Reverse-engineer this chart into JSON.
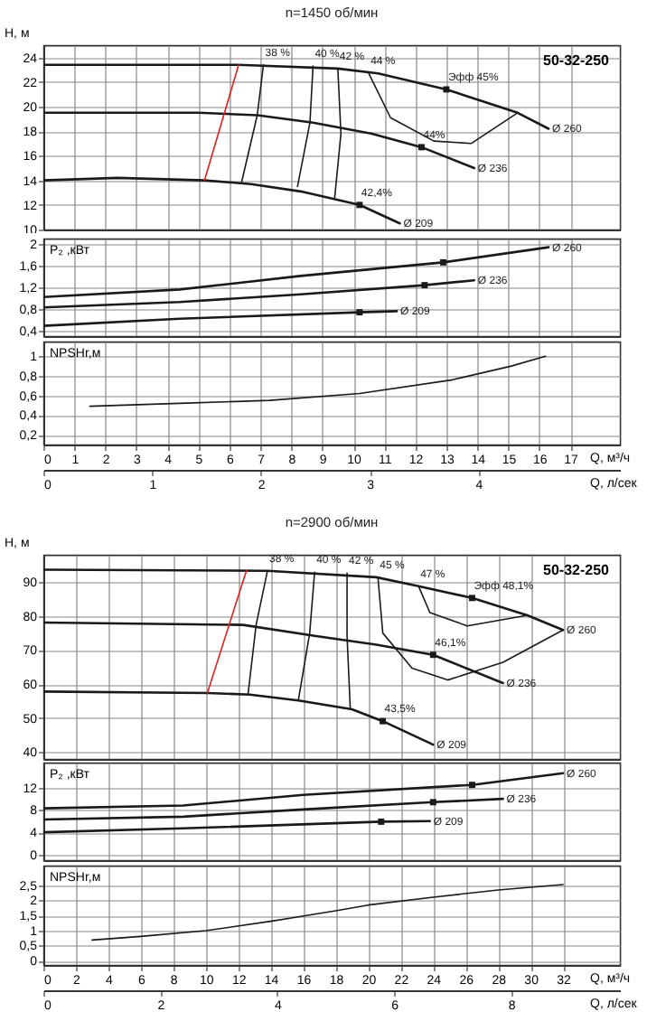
{
  "chart_data": [
    {
      "type": "line",
      "title": "n=1450 об/мин",
      "ylabel": "H, м",
      "xlim": [
        0,
        18.6
      ],
      "xticks": [
        0,
        1,
        2,
        3,
        4,
        5,
        6,
        7,
        8,
        9,
        10,
        11,
        12,
        13,
        14,
        15,
        16,
        17
      ],
      "ylim": [
        10,
        25
      ],
      "yticks": [
        10,
        12,
        14,
        16,
        18,
        20,
        22,
        24
      ],
      "grid": true,
      "tick_labels": "y",
      "series": [
        {
          "name": "Ø 260",
          "color": "#1a1a1a",
          "x": [
            0,
            6.3,
            9.5,
            10.8,
            13.0,
            15.3,
            16.3
          ],
          "values": [
            23.4,
            23.4,
            23.1,
            22.7,
            21.4,
            19.5,
            18.2
          ]
        },
        {
          "name": "Ø 236",
          "color": "#1a1a1a",
          "x": [
            0,
            5.0,
            6.9,
            8.7,
            10.6,
            12.2,
            13.9
          ],
          "values": [
            19.5,
            19.5,
            19.3,
            18.7,
            17.8,
            16.7,
            15.0
          ]
        },
        {
          "name": "Ø 209",
          "color": "#1a1a1a",
          "x": [
            0,
            2.4,
            5.2,
            6.7,
            8.3,
            10.2,
            11.5
          ],
          "values": [
            14.0,
            14.2,
            14.0,
            13.7,
            13.1,
            12.0,
            10.5
          ]
        },
        {
          "color": "#e0201c",
          "x": [
            6.3,
            5.2
          ],
          "values": [
            23.4,
            14.0
          ]
        },
        {
          "color": "#1a1a1a",
          "x": [
            7.1,
            6.9,
            6.4
          ],
          "values": [
            23.4,
            19.3,
            13.9
          ]
        },
        {
          "color": "#1a1a1a",
          "x": [
            8.7,
            8.6,
            8.2
          ],
          "values": [
            23.3,
            18.7,
            13.5
          ]
        },
        {
          "color": "#1a1a1a",
          "x": [
            9.5,
            9.6,
            9.4
          ],
          "values": [
            23.1,
            17.8,
            12.6
          ]
        },
        {
          "color": "#1a1a1a",
          "x": [
            10.5,
            11.2,
            12.6,
            13.8,
            15.3
          ],
          "values": [
            22.7,
            19.1,
            17.2,
            17.0,
            19.5
          ]
        },
        {
          "type": "scatter",
          "marker": "square",
          "color": "#1a1a1a",
          "x": [
            13.0,
            12.2,
            10.2
          ],
          "values": [
            21.4,
            16.7,
            12.0
          ]
        }
      ],
      "annotations": [
        "50-32-250",
        {
          "text": "38 %",
          "x": 7.1,
          "y": 23.4
        },
        {
          "text": "40 %",
          "x": 8.7,
          "y": 23.3
        },
        {
          "text": "42 %",
          "x": 9.5,
          "y": 23.1
        },
        {
          "text": "44 %",
          "x": 10.5,
          "y": 22.7
        },
        {
          "text": "Эфф  45%",
          "x": 13.0,
          "y": 21.4
        },
        {
          "text": "44%",
          "x": 12.2,
          "y": 16.7
        },
        {
          "text": "42,4%",
          "x": 10.2,
          "y": 12.0
        }
      ]
    },
    {
      "type": "line",
      "ylabel": "P₂ ,кВт",
      "xlim": [
        0,
        18.6
      ],
      "xticks": [
        0,
        1,
        2,
        3,
        4,
        5,
        6,
        7,
        8,
        9,
        10,
        11,
        12,
        13,
        14,
        15,
        16,
        17
      ],
      "ylim": [
        0.3,
        2.1
      ],
      "yticks": [
        {
          "value": 0.4,
          "label": "0,4"
        },
        {
          "value": 0.8,
          "label": "0,8"
        },
        {
          "value": 1.2,
          "label": "1,2"
        },
        {
          "value": 1.6,
          "label": "1,6"
        },
        2
      ],
      "grid": true,
      "tick_labels": "y",
      "series": [
        {
          "name": "Ø 260",
          "color": "#1a1a1a",
          "x": [
            0,
            4.4,
            8.3,
            12.9,
            16.3
          ],
          "values": [
            1.02,
            1.16,
            1.41,
            1.66,
            1.94
          ]
        },
        {
          "name": "Ø 236",
          "color": "#1a1a1a",
          "x": [
            0,
            4.4,
            8.3,
            12.3,
            13.9
          ],
          "values": [
            0.83,
            0.93,
            1.07,
            1.24,
            1.33
          ]
        },
        {
          "name": "Ø 209",
          "color": "#1a1a1a",
          "x": [
            0,
            4.4,
            10.2,
            11.4
          ],
          "values": [
            0.49,
            0.62,
            0.74,
            0.76
          ]
        },
        {
          "type": "scatter",
          "marker": "square",
          "color": "#1a1a1a",
          "x": [
            12.9,
            12.3,
            10.2
          ],
          "values": [
            1.66,
            1.24,
            0.74
          ]
        }
      ]
    },
    {
      "type": "line",
      "ylabel": "NPSHr,м",
      "xlabel": "Q, м³/ч",
      "x2label": "Q, л/сек",
      "xlim": [
        0,
        18.6
      ],
      "xticks": [
        0,
        1,
        2,
        3,
        4,
        5,
        6,
        7,
        8,
        9,
        10,
        11,
        12,
        13,
        14,
        15,
        16,
        17
      ],
      "x2lim": [
        0,
        5.3
      ],
      "x2ticks": [
        0,
        1,
        2,
        3,
        4
      ],
      "ylim": [
        0.1,
        1.15
      ],
      "yticks": [
        {
          "value": 0.2,
          "label": "0,2"
        },
        {
          "value": 0.4,
          "label": "0,4"
        },
        {
          "value": 0.6,
          "label": "0,6"
        },
        {
          "value": 0.8,
          "label": "0,8"
        },
        1
      ],
      "grid": true,
      "series": [
        {
          "color": "#1a1a1a",
          "x": [
            1.5,
            4.4,
            7.3,
            10.2,
            13.2,
            15.1,
            16.2
          ],
          "values": [
            0.49,
            0.52,
            0.55,
            0.62,
            0.76,
            0.9,
            1.0
          ]
        }
      ]
    },
    {
      "type": "line",
      "title": "n=2900 об/мин",
      "ylabel": "H, м",
      "xlim": [
        0,
        35.5
      ],
      "xticks": [
        0,
        2,
        4,
        6,
        8,
        10,
        12,
        14,
        16,
        18,
        20,
        22,
        24,
        26,
        28,
        30,
        32
      ],
      "ylim": [
        38,
        98
      ],
      "yticks": [
        40,
        50,
        60,
        70,
        80,
        90
      ],
      "grid": true,
      "tick_labels": "y",
      "series": [
        {
          "name": "Ø 260",
          "color": "#1a1a1a",
          "x": [
            0,
            13.8,
            20.5,
            23.1,
            26.4,
            29.8,
            32.0
          ],
          "values": [
            93.6,
            93.3,
            91.4,
            88.8,
            85.3,
            80.2,
            75.9
          ]
        },
        {
          "name": "Ø 236",
          "color": "#1a1a1a",
          "x": [
            0,
            12.3,
            16.8,
            20.5,
            24.0,
            28.3
          ],
          "values": [
            78.1,
            77.4,
            74.1,
            71.6,
            68.6,
            60.3
          ]
        },
        {
          "name": "Ø 209",
          "color": "#1a1a1a",
          "x": [
            0,
            10.1,
            12.7,
            15.7,
            19.0,
            20.9,
            24.0
          ],
          "values": [
            57.8,
            57.4,
            56.9,
            55.2,
            52.6,
            49.1,
            42.2
          ]
        },
        {
          "color": "#e0201c",
          "x": [
            12.5,
            10.1
          ],
          "values": [
            93.3,
            57.4
          ]
        },
        {
          "color": "#1a1a1a",
          "x": [
            13.8,
            13.1,
            12.6
          ],
          "values": [
            93.3,
            77.4,
            56.9
          ]
        },
        {
          "color": "#1a1a1a",
          "x": [
            16.7,
            16.4,
            15.7
          ],
          "values": [
            92.9,
            75,
            55.2
          ]
        },
        {
          "color": "#1a1a1a",
          "x": [
            18.7,
            18.7,
            18.9
          ],
          "values": [
            92.6,
            74.1,
            52.6
          ]
        },
        {
          "color": "#1a1a1a",
          "x": [
            20.6,
            20.9,
            22.7,
            24.9,
            28.3,
            32.0
          ],
          "values": [
            91.4,
            75,
            64.7,
            61.2,
            66.4,
            75.9
          ]
        },
        {
          "color": "#1a1a1a",
          "x": [
            23.1,
            23.8,
            26.1,
            29.8
          ],
          "values": [
            88.8,
            81.0,
            77.1,
            80.2
          ]
        },
        {
          "type": "scatter",
          "marker": "square",
          "color": "#1a1a1a",
          "x": [
            26.4,
            24.0,
            20.9
          ],
          "values": [
            85.3,
            68.6,
            49.1
          ]
        }
      ],
      "annotations": [
        "50-32-250",
        {
          "text": "38 %",
          "x": 13.8,
          "y": 93.3
        },
        {
          "text": "40 %",
          "x": 16.7,
          "y": 92.9
        },
        {
          "text": "42 %",
          "x": 18.7,
          "y": 92.6
        },
        {
          "text": "45 %",
          "x": 20.6,
          "y": 91.4
        },
        {
          "text": "47 %",
          "x": 23.1,
          "y": 88.8
        },
        {
          "text": "Эфф  48,1%",
          "x": 26.4,
          "y": 85.3
        },
        {
          "text": "46,1%",
          "x": 24.0,
          "y": 68.6
        },
        {
          "text": "43,5%",
          "x": 20.9,
          "y": 49.1
        }
      ]
    },
    {
      "type": "line",
      "ylabel": "P₂ ,кВт",
      "xlim": [
        0,
        35.5
      ],
      "xticks": [
        0,
        2,
        4,
        6,
        8,
        10,
        12,
        14,
        16,
        18,
        20,
        22,
        24,
        26,
        28,
        30,
        32
      ],
      "ylim": [
        -1,
        16.5
      ],
      "yticks": [
        0,
        4,
        8,
        12
      ],
      "grid": true,
      "tick_labels": "y",
      "series": [
        {
          "name": "Ø 260",
          "color": "#1a1a1a",
          "x": [
            0,
            8.6,
            16,
            26.4,
            32
          ],
          "values": [
            8.3,
            8.8,
            10.7,
            12.5,
            14.6
          ]
        },
        {
          "name": "Ø 236",
          "color": "#1a1a1a",
          "x": [
            0,
            8.6,
            16,
            24,
            28.3
          ],
          "values": [
            6.3,
            6.8,
            8.1,
            9.4,
            10.0
          ]
        },
        {
          "name": "Ø 209",
          "color": "#1a1a1a",
          "x": [
            0,
            8.6,
            20.8,
            23.8
          ],
          "values": [
            4.0,
            4.7,
            5.9,
            6.0
          ]
        },
        {
          "type": "scatter",
          "marker": "square",
          "color": "#1a1a1a",
          "x": [
            26.4,
            24,
            20.8
          ],
          "values": [
            12.5,
            9.4,
            5.9
          ]
        }
      ]
    },
    {
      "type": "line",
      "ylabel": "NPSHr,м",
      "xlabel": "Q, м³/ч",
      "x2label": "Q, л/сек",
      "xlim": [
        0,
        35.5
      ],
      "xticks": [
        0,
        2,
        4,
        6,
        8,
        10,
        12,
        14,
        16,
        18,
        20,
        22,
        24,
        26,
        28,
        30,
        32
      ],
      "x2lim": [
        0,
        9.86
      ],
      "x2ticks": [
        0,
        2,
        4,
        6,
        8
      ],
      "ylim": [
        -0.15,
        3.15
      ],
      "yticks": [
        0,
        {
          "value": 0.5,
          "label": "0,5"
        },
        1,
        {
          "value": 1.5,
          "label": "1,5"
        },
        2,
        {
          "value": 2.5,
          "label": "2,5"
        }
      ],
      "grid": true,
      "series": [
        {
          "color": "#1a1a1a",
          "x": [
            3,
            6,
            10,
            14,
            18,
            20,
            24,
            28,
            32
          ],
          "values": [
            0.68,
            0.8,
            0.99,
            1.3,
            1.65,
            1.84,
            2.1,
            2.34,
            2.52
          ]
        }
      ]
    }
  ]
}
